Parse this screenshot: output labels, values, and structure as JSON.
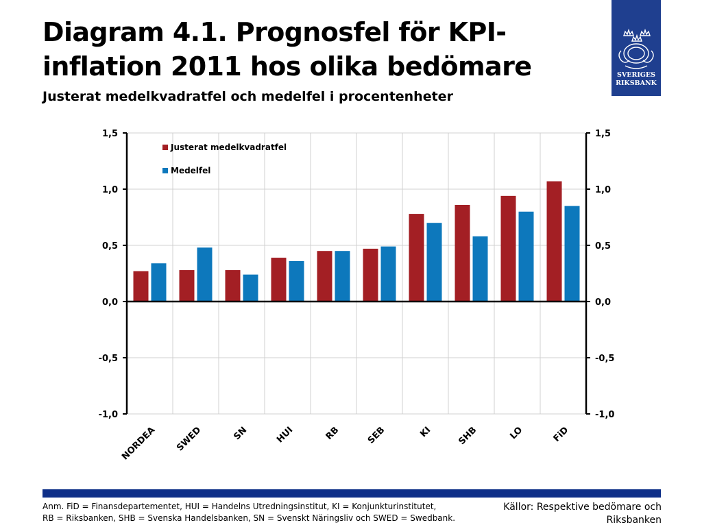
{
  "header": {
    "title_line1": "Diagram 4.1. Prognosfel för KPI-",
    "title_line2": "inflation 2011 hos olika bedömare",
    "subtitle": "Justerat medelkvadratfel och medelfel i procentenheter"
  },
  "logo": {
    "line1": "SVERIGES",
    "line2": "RIKSBANK",
    "icon": "riksbank-crest-icon"
  },
  "footer": {
    "note_line1": "Anm. FiD = Finansdepartementet, HUI = Handelns Utredningsinstitut, KI = Konjunkturinstitutet,",
    "note_line2": "RB = Riksbanken, SHB = Svenska Handelsbanken, SN = Svenskt Näringsliv och SWED = Swedbank.",
    "source_line1": "Källor: Respektive bedömare och",
    "source_line2": "Riksbanken"
  },
  "colors": {
    "series1": "#a31f24",
    "series2": "#0d78bc",
    "footer_bar": "#0e2f88",
    "logo_bg": "#1f3f8f"
  },
  "chart_data": {
    "type": "bar",
    "categories": [
      "NORDEA",
      "SWED",
      "SN",
      "HUI",
      "RB",
      "SEB",
      "KI",
      "SHB",
      "LO",
      "FiD"
    ],
    "series": [
      {
        "name": "Justerat medelkvadratfel",
        "values": [
          0.27,
          0.28,
          0.28,
          0.39,
          0.45,
          0.47,
          0.78,
          0.86,
          0.94,
          1.07
        ]
      },
      {
        "name": "Medelfel",
        "values": [
          0.34,
          0.48,
          0.24,
          0.36,
          0.45,
          0.49,
          0.7,
          0.58,
          0.8,
          0.85
        ]
      }
    ],
    "ylim": [
      -1.0,
      1.5
    ],
    "yticks": [
      "-1,0",
      "-0,5",
      "0,0",
      "0,5",
      "1,0",
      "1,5"
    ],
    "ytick_values": [
      -1.0,
      -0.5,
      0.0,
      0.5,
      1.0,
      1.5
    ],
    "grid": true,
    "legend_position": "top-left"
  }
}
